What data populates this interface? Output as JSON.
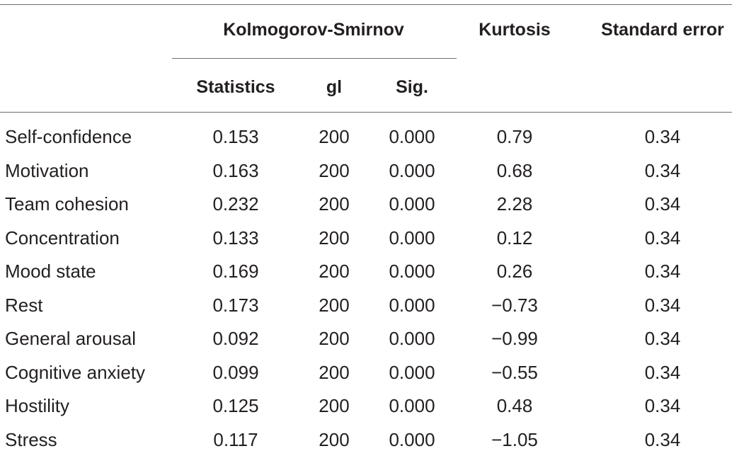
{
  "table": {
    "header": {
      "group": "Kolmogorov-Smirnov",
      "kurtosis": "Kurtosis",
      "std_error": "Standard error",
      "statistics": "Statistics",
      "gl": "gl",
      "sig": "Sig."
    },
    "rows": [
      {
        "label": "Self-confidence",
        "statistics": "0.153",
        "gl": "200",
        "sig": "0.000",
        "kurtosis": "0.79",
        "std_error": "0.34"
      },
      {
        "label": "Motivation",
        "statistics": "0.163",
        "gl": "200",
        "sig": "0.000",
        "kurtosis": "0.68",
        "std_error": "0.34"
      },
      {
        "label": "Team cohesion",
        "statistics": "0.232",
        "gl": "200",
        "sig": "0.000",
        "kurtosis": "2.28",
        "std_error": "0.34"
      },
      {
        "label": "Concentration",
        "statistics": "0.133",
        "gl": "200",
        "sig": "0.000",
        "kurtosis": "0.12",
        "std_error": "0.34"
      },
      {
        "label": "Mood state",
        "statistics": "0.169",
        "gl": "200",
        "sig": "0.000",
        "kurtosis": "0.26",
        "std_error": "0.34"
      },
      {
        "label": "Rest",
        "statistics": "0.173",
        "gl": "200",
        "sig": "0.000",
        "kurtosis": "−0.73",
        "std_error": "0.34"
      },
      {
        "label": "General arousal",
        "statistics": "0.092",
        "gl": "200",
        "sig": "0.000",
        "kurtosis": "−0.99",
        "std_error": "0.34"
      },
      {
        "label": "Cognitive anxiety",
        "statistics": "0.099",
        "gl": "200",
        "sig": "0.000",
        "kurtosis": "−0.55",
        "std_error": "0.34"
      },
      {
        "label": "Hostility",
        "statistics": "0.125",
        "gl": "200",
        "sig": "0.000",
        "kurtosis": "0.48",
        "std_error": "0.34"
      },
      {
        "label": "Stress",
        "statistics": "0.117",
        "gl": "200",
        "sig": "0.000",
        "kurtosis": "−1.05",
        "std_error": "0.34"
      }
    ]
  }
}
